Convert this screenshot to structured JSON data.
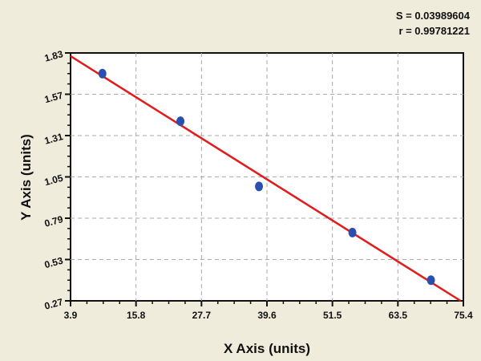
{
  "stats": {
    "s_label": "S = 0.03989604",
    "r_label": "r = 0.99781221"
  },
  "chart_data": {
    "type": "scatter",
    "title": "",
    "xlabel": "X Axis (units)",
    "ylabel": "Y Axis (units)",
    "xlim": [
      3.9,
      75.4
    ],
    "ylim": [
      0.27,
      1.83
    ],
    "x_ticks": [
      "3.9",
      "15.8",
      "27.7",
      "39.6",
      "51.5",
      "63.5",
      "75.4"
    ],
    "y_ticks": [
      "0.27",
      "0.53",
      "0.79",
      "1.05",
      "1.31",
      "1.57",
      "1.83"
    ],
    "grid": true,
    "series": [
      {
        "type": "scatter",
        "color": "#2b4fae",
        "points": [
          [
            9.7,
            1.7
          ],
          [
            23.9,
            1.4
          ],
          [
            38.2,
            0.99
          ],
          [
            55.2,
            0.7
          ],
          [
            69.5,
            0.4
          ]
        ]
      },
      {
        "type": "fit-line",
        "color": "#e21b1b",
        "points": [
          [
            3.9,
            1.81
          ],
          [
            74.9,
            0.27
          ]
        ]
      }
    ]
  }
}
